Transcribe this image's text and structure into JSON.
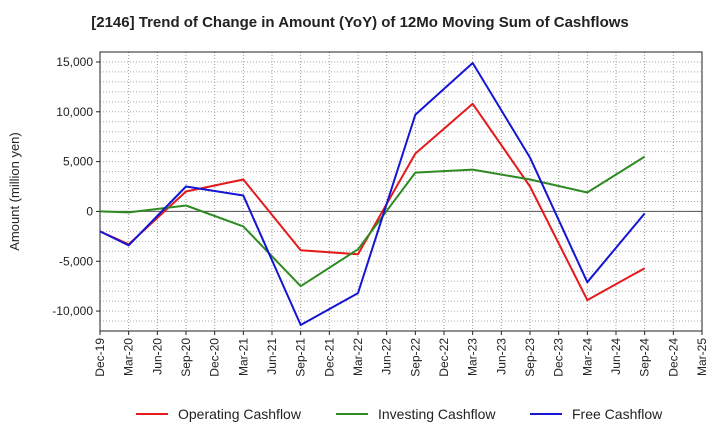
{
  "chart_data": {
    "type": "line",
    "title": "[2146]  Trend of Change in Amount (YoY) of 12Mo Moving Sum of Cashflows",
    "xlabel": "",
    "ylabel": "Amount (million yen)",
    "ylim": [
      -12000,
      16000
    ],
    "yticks": [
      15000,
      10000,
      5000,
      0,
      -5000,
      -10000
    ],
    "ytick_labels": [
      "15,000",
      "10,000",
      "5,000",
      "0",
      "-5,000",
      "-10,000"
    ],
    "categories": [
      "Dec-19",
      "Mar-20",
      "Jun-20",
      "Sep-20",
      "Dec-20",
      "Mar-21",
      "Jun-21",
      "Sep-21",
      "Dec-21",
      "Mar-22",
      "Jun-22",
      "Sep-22",
      "Dec-22",
      "Mar-23",
      "Jun-23",
      "Sep-23",
      "Dec-23",
      "Mar-24",
      "Jun-24",
      "Sep-24",
      "Dec-24",
      "Mar-25"
    ],
    "grid": true,
    "legend_position": "bottom",
    "series": [
      {
        "name": "Operating Cashflow",
        "color": "#e41a1c",
        "values": [
          -2000,
          -3300,
          null,
          2000,
          null,
          3200,
          null,
          -3900,
          null,
          -4300,
          null,
          5800,
          null,
          10800,
          null,
          2500,
          null,
          -8900,
          null,
          -5700,
          null,
          null
        ]
      },
      {
        "name": "Investing Cashflow",
        "color": "#2e8b22",
        "values": [
          0,
          -100,
          null,
          600,
          null,
          -1500,
          null,
          -7500,
          null,
          -3800,
          null,
          3900,
          null,
          4200,
          null,
          3200,
          null,
          1900,
          null,
          5500,
          null,
          null
        ]
      },
      {
        "name": "Free Cashflow",
        "color": "#1515d4",
        "values": [
          -2000,
          -3400,
          null,
          2500,
          null,
          1600,
          null,
          -11400,
          null,
          -8200,
          null,
          9700,
          null,
          14900,
          null,
          5400,
          null,
          -7100,
          null,
          -200,
          null,
          null
        ]
      }
    ]
  }
}
